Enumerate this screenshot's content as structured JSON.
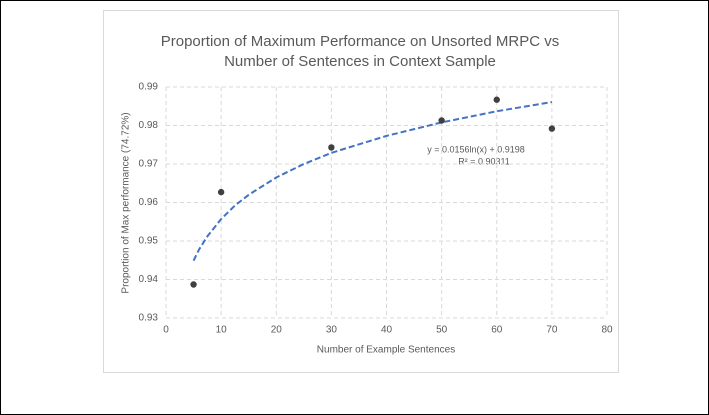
{
  "chart_data": {
    "type": "scatter",
    "title": [
      "Proportion of Maximum Performance on Unsorted MRPC vs",
      "Number of Sentences in Context Sample"
    ],
    "xlabel": "Number of Example Sentences",
    "ylabel": "Proportion of Max performance (74.72%)",
    "series": [
      {
        "color": "#404040",
        "x": [
          5,
          10,
          30,
          50,
          60,
          70
        ],
        "values": [
          0.9387,
          0.9627,
          0.9743,
          0.9813,
          0.9867,
          0.9792
        ]
      }
    ],
    "trendline": {
      "color": "#4472c4",
      "x": [
        5,
        6,
        7.5,
        10,
        12.5,
        15,
        20,
        25,
        30,
        40,
        50,
        60,
        70
      ],
      "values": [
        0.9449,
        0.9478,
        0.9512,
        0.9557,
        0.9592,
        0.962,
        0.9665,
        0.97,
        0.9729,
        0.9773,
        0.9808,
        0.9837,
        0.9861
      ]
    },
    "annotations": [
      "y = 0.0156ln(x) + 0.9198",
      "R² = 0.90311"
    ],
    "xlim": [
      0,
      80
    ],
    "xticks": [
      0,
      10,
      20,
      30,
      40,
      50,
      60,
      70,
      80
    ],
    "ylim": [
      0.93,
      0.99
    ],
    "yticks": [
      0.93,
      0.94,
      0.95,
      0.96,
      0.97,
      0.98,
      0.99
    ],
    "grid": true
  }
}
